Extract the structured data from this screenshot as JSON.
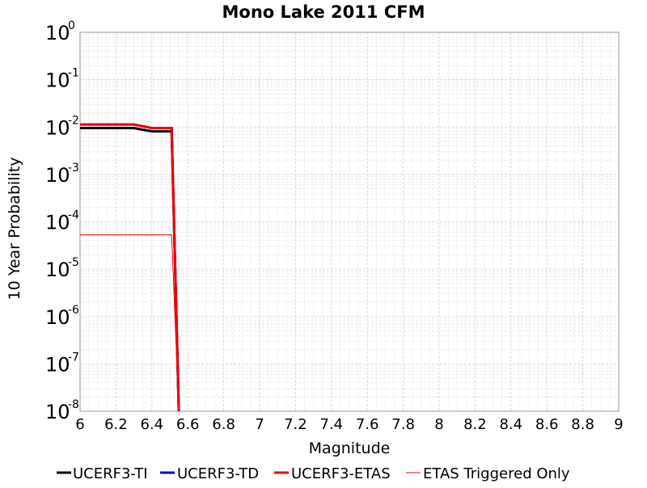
{
  "chart_data": {
    "type": "line",
    "title": "Mono Lake 2011 CFM",
    "xlabel": "Magnitude",
    "ylabel": "10 Year Probability",
    "xlim": [
      6,
      9
    ],
    "ylim": [
      1e-08,
      1
    ],
    "yscale": "log",
    "grid": true,
    "legend_position": "bottom",
    "x_ticks": [
      "6",
      "6.2",
      "6.4",
      "6.6",
      "6.8",
      "7",
      "7.2",
      "7.4",
      "7.6",
      "7.8",
      "8",
      "8.2",
      "8.4",
      "8.6",
      "8.8",
      "9"
    ],
    "y_ticks": [
      {
        "base": "10",
        "exp": "0"
      },
      {
        "base": "10",
        "exp": "-1"
      },
      {
        "base": "10",
        "exp": "-2"
      },
      {
        "base": "10",
        "exp": "-3"
      },
      {
        "base": "10",
        "exp": "-4"
      },
      {
        "base": "10",
        "exp": "-5"
      },
      {
        "base": "10",
        "exp": "-6"
      },
      {
        "base": "10",
        "exp": "-7"
      },
      {
        "base": "10",
        "exp": "-8"
      }
    ],
    "series": [
      {
        "name": "UCERF3-TI",
        "color": "#000000",
        "width": 3,
        "x": [
          6.0,
          6.1,
          6.2,
          6.3,
          6.4,
          6.5,
          6.51,
          6.55
        ],
        "y": [
          0.0095,
          0.0095,
          0.0095,
          0.0095,
          0.0081,
          0.0081,
          0.0081,
          1e-08
        ]
      },
      {
        "name": "UCERF3-TD",
        "color": "#0000cc",
        "width": 3,
        "x": [
          6.0,
          6.1,
          6.2,
          6.3,
          6.4,
          6.5,
          6.51,
          6.55
        ],
        "y": [
          0.0113,
          0.0113,
          0.0113,
          0.0113,
          0.0095,
          0.0095,
          0.0095,
          1e-08
        ]
      },
      {
        "name": "UCERF3-ETAS",
        "color": "#ee0000",
        "width": 3,
        "x": [
          6.0,
          6.1,
          6.2,
          6.3,
          6.4,
          6.5,
          6.51,
          6.55
        ],
        "y": [
          0.0113,
          0.0113,
          0.0113,
          0.0113,
          0.0095,
          0.0095,
          0.0095,
          1e-08
        ]
      },
      {
        "name": "ETAS Triggered Only",
        "color": "#ee0000",
        "width": 1,
        "x": [
          6.0,
          6.1,
          6.2,
          6.3,
          6.4,
          6.5,
          6.51,
          6.55
        ],
        "y": [
          5.3e-05,
          5.3e-05,
          5.3e-05,
          5.3e-05,
          5.3e-05,
          5.3e-05,
          5.3e-05,
          1e-08
        ]
      }
    ]
  }
}
